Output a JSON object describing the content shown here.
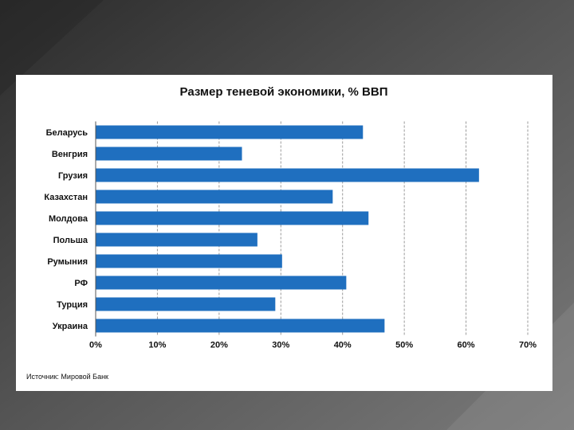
{
  "slide": {
    "background_dark": "#2b2b2b",
    "background_light": "#7a7a7a"
  },
  "chart_data": {
    "type": "bar",
    "orientation": "horizontal",
    "title": "Размер теневой экономики, % ВВП",
    "categories": [
      "Беларусь",
      "Венгрия",
      "Грузия",
      "Казахстан",
      "Молдова",
      "Польша",
      "Румыния",
      "РФ",
      "Турция",
      "Украина"
    ],
    "values": [
      43.3,
      23.7,
      62.1,
      38.4,
      44.2,
      26.2,
      30.2,
      40.6,
      29.1,
      46.8
    ],
    "xlim": [
      0,
      70
    ],
    "xticks": [
      0,
      10,
      20,
      30,
      40,
      50,
      60,
      70
    ],
    "xtick_labels": [
      "0%",
      "10%",
      "20%",
      "30%",
      "40%",
      "50%",
      "60%",
      "70%"
    ],
    "xlabel": "",
    "ylabel": "",
    "grid": "vertical-dashed",
    "bar_color": "#1f6fbf",
    "source": "Источник: Мировой Банк"
  }
}
